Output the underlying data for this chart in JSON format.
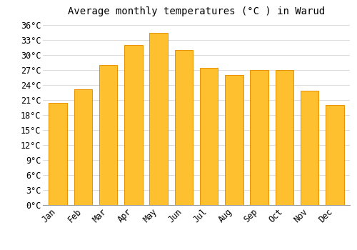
{
  "months": [
    "Jan",
    "Feb",
    "Mar",
    "Apr",
    "May",
    "Jun",
    "Jul",
    "Aug",
    "Sep",
    "Oct",
    "Nov",
    "Dec"
  ],
  "temperatures": [
    20.5,
    23.2,
    28.0,
    32.0,
    34.5,
    31.0,
    27.5,
    26.0,
    27.0,
    27.0,
    22.8,
    20.0
  ],
  "bar_color": "#FFC030",
  "bar_edge_color": "#E89000",
  "bar_edge_right_color": "#E08000",
  "background_color": "#FFFFFF",
  "grid_color": "#DDDDDD",
  "title": "Average monthly temperatures (°C ) in Warud",
  "title_fontsize": 10,
  "tick_label_fontsize": 8.5,
  "ylim": [
    0,
    37
  ],
  "yticks": [
    0,
    3,
    6,
    9,
    12,
    15,
    18,
    21,
    24,
    27,
    30,
    33,
    36
  ]
}
